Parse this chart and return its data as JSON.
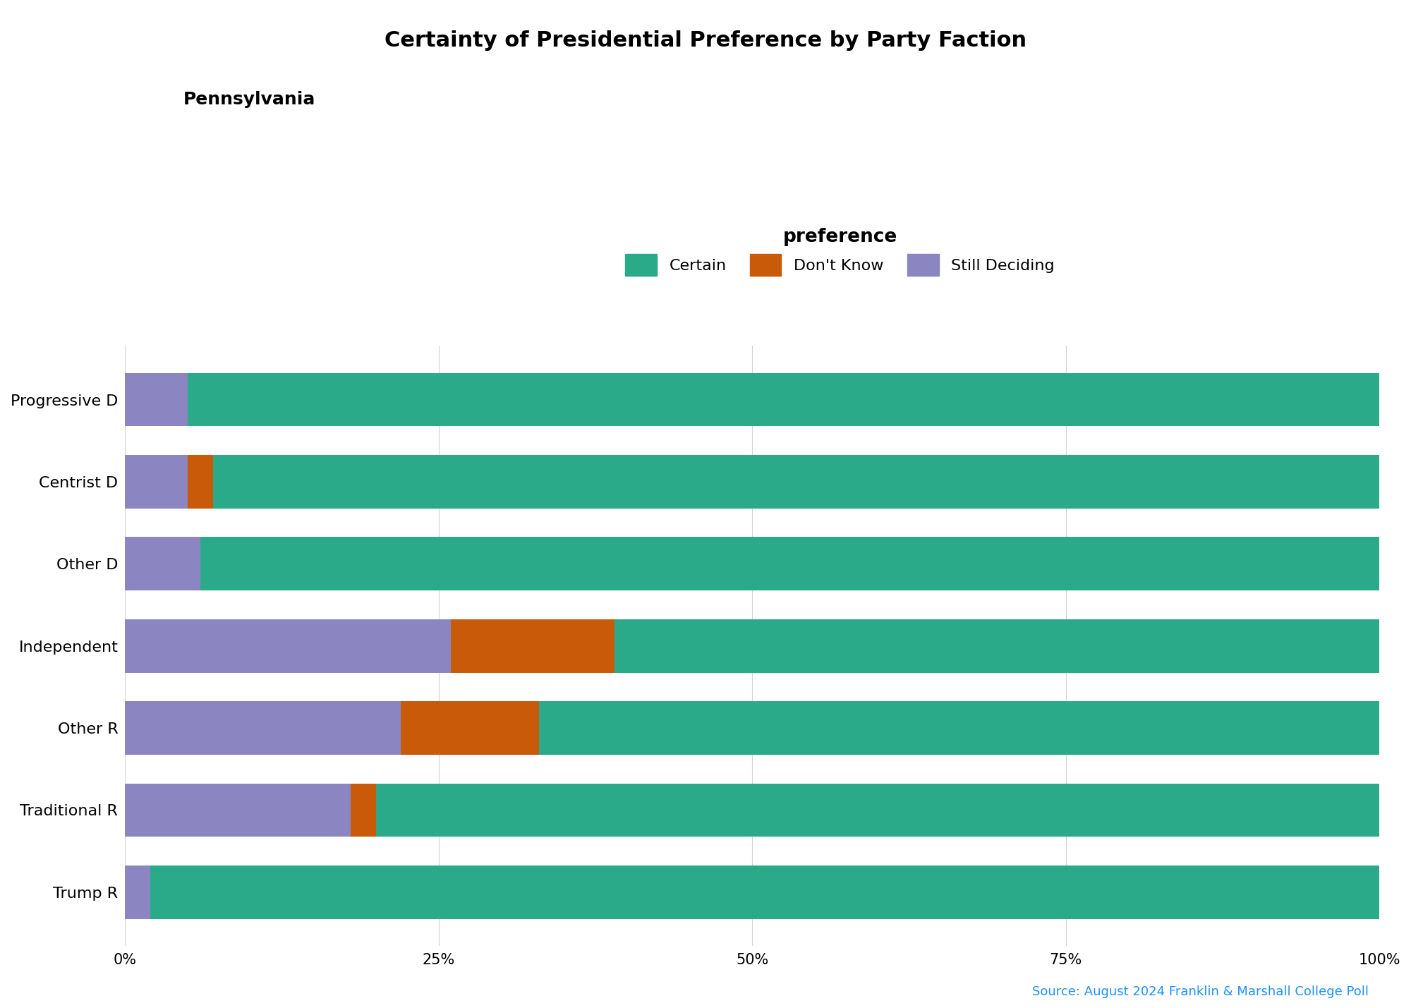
{
  "categories": [
    "Trump R",
    "Traditional R",
    "Other R",
    "Independent",
    "Other D",
    "Centrist D",
    "Progressive D"
  ],
  "still_deciding": [
    2,
    18,
    22,
    26,
    6,
    5,
    5
  ],
  "dont_know": [
    0,
    2,
    11,
    13,
    0,
    2,
    0
  ],
  "certain": [
    98,
    80,
    67,
    61,
    94,
    93,
    95
  ],
  "color_still_deciding": "#8B85C1",
  "color_dont_know": "#C85A0A",
  "color_certain": "#2BAA8A",
  "title": "Certainty of Presidential Preference by Party Faction",
  "subtitle": "Pennsylvania",
  "legend_title": "preference",
  "legend_labels": [
    "Certain",
    "Don't Know",
    "Still Deciding"
  ],
  "xlabel_ticks": [
    "0%",
    "25%",
    "50%",
    "75%",
    "100%"
  ],
  "xlabel_vals": [
    0,
    25,
    50,
    75,
    100
  ],
  "source_text": "Source: August 2024 Franklin & Marshall College Poll",
  "source_color": "#1E90FF",
  "background_color": "#FFFFFF",
  "title_fontsize": 22,
  "subtitle_fontsize": 18,
  "label_fontsize": 16,
  "tick_fontsize": 15,
  "legend_fontsize": 16
}
